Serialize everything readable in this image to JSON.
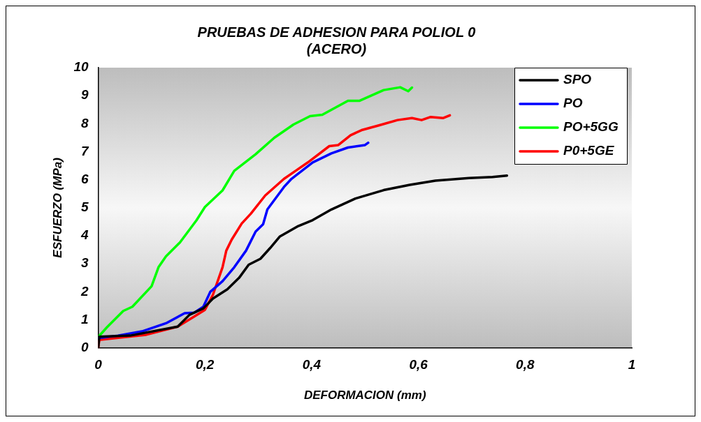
{
  "chart_data": {
    "type": "line",
    "title": "PRUEBAS DE ADHESION PARA POLIOL 0\n(ACERO)",
    "xlabel": "DEFORMACION (mm)",
    "ylabel": "ESFUERZO (MPa)",
    "xlim": [
      0,
      1
    ],
    "xticks": [
      0,
      {
        "value": 0.2,
        "label": "0,2"
      },
      {
        "value": 0.4,
        "label": "0,4"
      },
      {
        "value": 0.6,
        "label": "0,6"
      },
      {
        "value": 0.8,
        "label": "0,8"
      },
      1
    ],
    "ylim": [
      0,
      10
    ],
    "yticks": [
      0,
      1,
      2,
      3,
      4,
      5,
      6,
      7,
      8,
      9,
      10
    ],
    "grid": false,
    "legend": "top right",
    "marker": "none",
    "line_style": "solid",
    "series": [
      {
        "name": "SPO",
        "color": "#000000",
        "x": [
          0,
          0.002,
          0.06,
          0.149,
          0.171,
          0.197,
          0.215,
          0.242,
          0.264,
          0.282,
          0.304,
          0.322,
          0.34,
          0.375,
          0.402,
          0.437,
          0.482,
          0.535,
          0.584,
          0.632,
          0.695,
          0.739,
          0.766
        ],
        "values": [
          0,
          0.4,
          0.44,
          0.76,
          1.18,
          1.41,
          1.76,
          2.09,
          2.5,
          2.97,
          3.18,
          3.56,
          3.97,
          4.35,
          4.56,
          4.94,
          5.33,
          5.63,
          5.82,
          5.97,
          6.06,
          6.1,
          6.15
        ]
      },
      {
        "name": "PO",
        "color": "#0000ff",
        "x": [
          0,
          0.037,
          0.082,
          0.127,
          0.162,
          0.18,
          0.197,
          0.21,
          0.233,
          0.255,
          0.277,
          0.295,
          0.309,
          0.317,
          0.348,
          0.362,
          0.402,
          0.437,
          0.468,
          0.5,
          0.506
        ],
        "values": [
          0.35,
          0.44,
          0.59,
          0.88,
          1.24,
          1.26,
          1.47,
          2.0,
          2.38,
          2.88,
          3.47,
          4.15,
          4.41,
          4.94,
          5.74,
          6.03,
          6.62,
          6.94,
          7.15,
          7.24,
          7.32
        ]
      },
      {
        "name": "PO+5GG",
        "color": "#00ff00",
        "x": [
          0.002,
          0.016,
          0.047,
          0.064,
          0.1,
          0.113,
          0.127,
          0.153,
          0.184,
          0.2,
          0.233,
          0.255,
          0.295,
          0.33,
          0.366,
          0.397,
          0.42,
          0.468,
          0.49,
          0.535,
          0.566,
          0.581,
          0.588
        ],
        "values": [
          0.43,
          0.73,
          1.32,
          1.47,
          2.2,
          2.88,
          3.27,
          3.76,
          4.55,
          5.03,
          5.62,
          6.32,
          6.91,
          7.5,
          7.97,
          8.27,
          8.32,
          8.82,
          8.82,
          9.2,
          9.3,
          9.16,
          9.29
        ]
      },
      {
        "name": "P0+5GE",
        "color": "#ff0000",
        "x": [
          0,
          0.002,
          0.047,
          0.09,
          0.149,
          0.18,
          0.2,
          0.215,
          0.233,
          0.24,
          0.25,
          0.269,
          0.286,
          0.313,
          0.348,
          0.37,
          0.393,
          0.433,
          0.45,
          0.473,
          0.495,
          0.526,
          0.561,
          0.588,
          0.606,
          0.623,
          0.646,
          0.659
        ],
        "values": [
          0,
          0.29,
          0.38,
          0.47,
          0.76,
          1.12,
          1.36,
          1.9,
          2.88,
          3.47,
          3.86,
          4.44,
          4.79,
          5.44,
          6.03,
          6.32,
          6.62,
          7.2,
          7.24,
          7.59,
          7.78,
          7.94,
          8.13,
          8.2,
          8.13,
          8.24,
          8.2,
          8.3
        ]
      }
    ]
  }
}
